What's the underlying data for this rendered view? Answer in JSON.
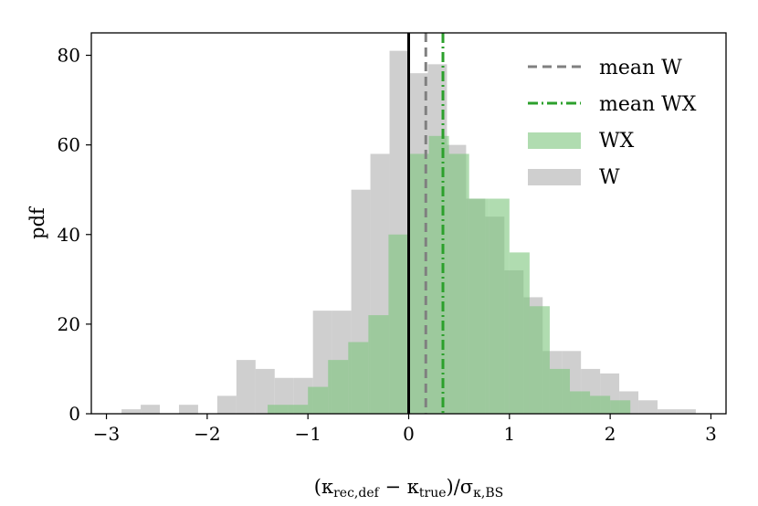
{
  "chart_data": {
    "type": "bar",
    "xlabel": "(κrec,def − κtrue)/σκ,BS",
    "ylabel": "pdf",
    "xlim": [
      -3.15,
      3.15
    ],
    "ylim": [
      0,
      85
    ],
    "xticks": [
      -3,
      -2,
      -1,
      0,
      1,
      2,
      3
    ],
    "xtick_labels": [
      "−3",
      "−2",
      "−1",
      "0",
      "1",
      "2",
      "3"
    ],
    "yticks": [
      0,
      20,
      40,
      60,
      80
    ],
    "ytick_labels": [
      "0",
      "20",
      "40",
      "60",
      "80"
    ],
    "grid": false,
    "legend_position": "top-right",
    "series": [
      {
        "name": "W",
        "color": "#bfbfbf",
        "opacity": 0.75,
        "bin_edges": [
          -2.85,
          -2.66,
          -2.47,
          -2.28,
          -2.09,
          -1.9,
          -1.71,
          -1.52,
          -1.33,
          -1.14,
          -0.95,
          -0.76,
          -0.57,
          -0.38,
          -0.19,
          0.0,
          0.19,
          0.38,
          0.57,
          0.76,
          0.95,
          1.14,
          1.33,
          1.52,
          1.71,
          1.9,
          2.09,
          2.28,
          2.47,
          2.66,
          2.85
        ],
        "values": [
          1,
          2,
          0,
          2,
          0,
          4,
          12,
          10,
          8,
          8,
          23,
          23,
          50,
          58,
          81,
          76,
          78,
          60,
          48,
          44,
          32,
          26,
          14,
          14,
          10,
          9,
          5,
          3,
          1,
          1
        ]
      },
      {
        "name": "WX",
        "color": "#7cc47c",
        "opacity": 0.6,
        "bin_edges": [
          -1.4,
          -1.2,
          -1.0,
          -0.8,
          -0.6,
          -0.4,
          -0.2,
          0.0,
          0.2,
          0.4,
          0.6,
          0.8,
          1.0,
          1.2,
          1.4,
          1.6,
          1.8,
          2.0,
          2.2
        ],
        "values": [
          2,
          2,
          6,
          12,
          16,
          22,
          40,
          58,
          62,
          58,
          48,
          48,
          36,
          24,
          10,
          5,
          4,
          3
        ]
      }
    ],
    "reference_lines": [
      {
        "label": "",
        "x": 0.0,
        "color": "#000000",
        "style": "solid"
      },
      {
        "label": "mean W",
        "x": 0.17,
        "color": "#808080",
        "style": "dashed"
      },
      {
        "label": "mean WX",
        "x": 0.34,
        "color": "#2ca02c",
        "style": "dashdot"
      }
    ],
    "legend": [
      {
        "label": "mean W",
        "kind": "line",
        "color": "#808080",
        "style": "dashed"
      },
      {
        "label": "mean WX",
        "kind": "line",
        "color": "#2ca02c",
        "style": "dashdot"
      },
      {
        "label": "WX",
        "kind": "patch",
        "color": "#7cc47c"
      },
      {
        "label": "W",
        "kind": "patch",
        "color": "#bfbfbf"
      }
    ]
  }
}
